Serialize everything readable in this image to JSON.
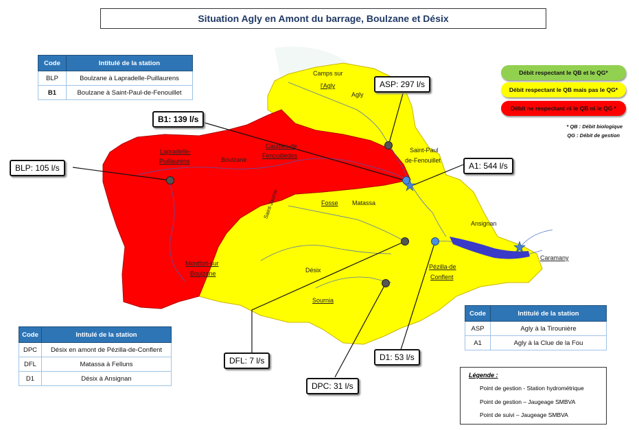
{
  "title": "Situation Agly en Amont du barrage, Boulzane et Désix",
  "tables": {
    "boulzane": {
      "headers": [
        "Code",
        "Intitulé de la station"
      ],
      "rows": [
        {
          "code": "BLP",
          "name": "Boulzane à Lapradelle-Puillaurens"
        },
        {
          "code": "B1",
          "name": "Boulzane à Saint-Paul-de-Fenouillet"
        }
      ]
    },
    "agly": {
      "headers": [
        "Code",
        "Intitulé de la station"
      ],
      "rows": [
        {
          "code": "ASP",
          "name": "Agly à la Tirounière"
        },
        {
          "code": "A1",
          "name": "Agly à la Clue de la Fou"
        }
      ]
    },
    "desix": {
      "headers": [
        "Code",
        "Intitulé de la station"
      ],
      "rows": [
        {
          "code": "DPC",
          "name": "Désix en amont de Pézilla-de-Conflent"
        },
        {
          "code": "DFL",
          "name": "Matassa  à Felluns"
        },
        {
          "code": "D1",
          "name": "Désix à Ansignan"
        }
      ]
    }
  },
  "callouts": {
    "asp": "ASP: 297 l/s",
    "b1": "B1: 139 l/s",
    "blp": "BLP: 105 l/s",
    "a1": "A1: 544 l/s",
    "dfl": "DFL: 7 l/s",
    "d1": "D1: 53 l/s",
    "dpc": "DPC: 31 l/s"
  },
  "map_labels": {
    "camps1": "Camps sur",
    "camps2": "l'Agly",
    "agly": "Agly",
    "stpaul1": "Saint-Paul",
    "stpaul2": "de-Fenouillet",
    "caudies1": "Caudiès-de",
    "caudies2": "Fenouillèdes",
    "lapradelle1": "Lapradelle-",
    "lapradelle2": "Puillaurens",
    "boulzane": "Boulzane",
    "stjaume": "Saint-Jaume",
    "fosse": "Fosse",
    "matassa": "Matassa",
    "ansignan": "Ansignan",
    "caramany": "Caramany",
    "pezilla1": "Pézilla-de",
    "pezilla2": "Conflent",
    "desix": "Désix",
    "sournia": "Sournia",
    "montfort1": "Montfort-sur",
    "montfort2": "Boulzane"
  },
  "status_legend": {
    "green": "Débit  respectant le QB et le QG*",
    "yellow": "Débit  respectant le QB mais pas le QG*",
    "red": "Débit  ne respectant ni le QB ni le QG *",
    "note1": "* QB : Débit biologique",
    "note2": "QG : Débit de gestion",
    "colors": {
      "green": "#92d050",
      "yellow": "#ffff00",
      "red": "#ff0000"
    }
  },
  "legend": {
    "title": "Légende :",
    "star": "Point de gestion - Station hydrométrique",
    "blue_dot": "Point de gestion – Jaugeage SMBVA",
    "grey_dot": "Point de suivi – Jaugeage SMBVA"
  }
}
